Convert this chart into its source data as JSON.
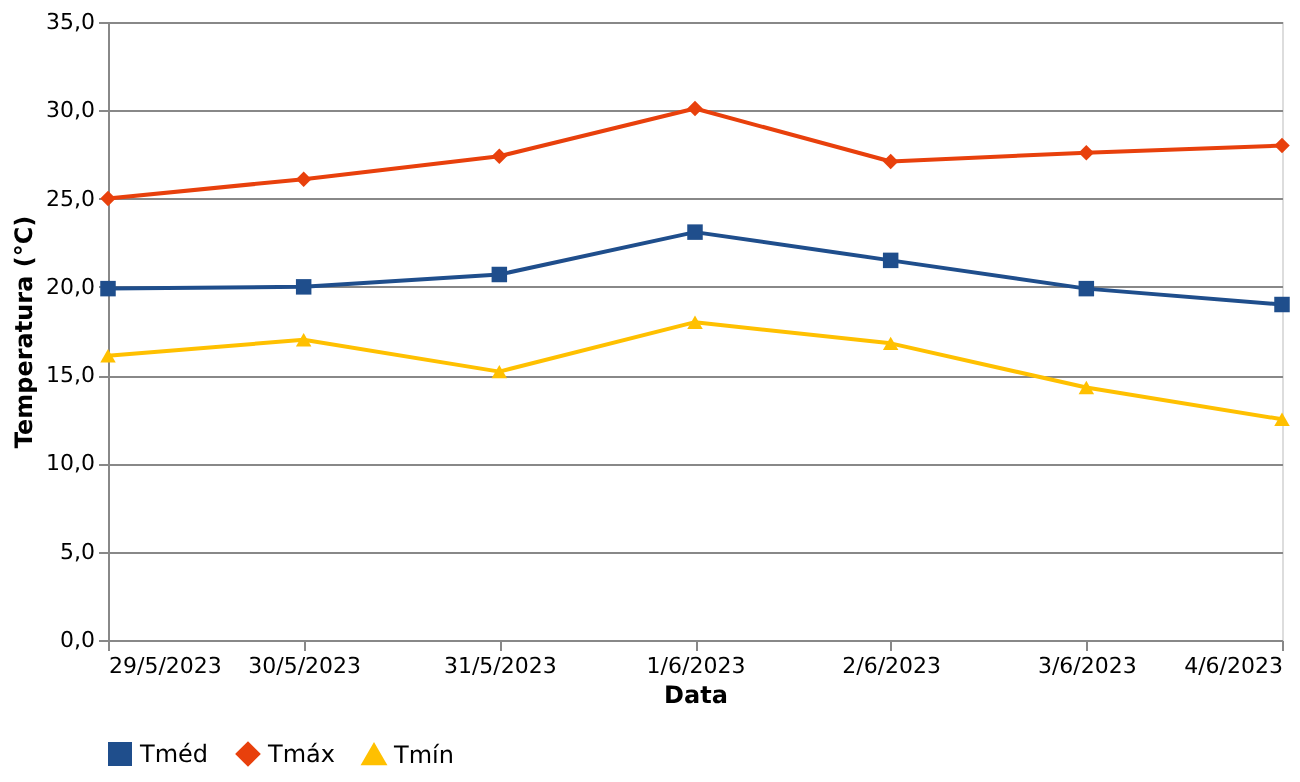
{
  "chart_data": {
    "type": "line",
    "xlabel": "Data",
    "ylabel": "Temperatura (°C)",
    "categories": [
      "29/5/2023",
      "30/5/2023",
      "31/5/2023",
      "1/6/2023",
      "2/6/2023",
      "3/6/2023",
      "4/6/2023"
    ],
    "series": [
      {
        "name": "Tméd",
        "color": "#1f4e8c",
        "marker": "square",
        "values": [
          19.9,
          20.0,
          20.7,
          23.1,
          21.5,
          19.9,
          19.0
        ]
      },
      {
        "name": "Tmáx",
        "color": "#e8400c",
        "marker": "diamond",
        "values": [
          25.0,
          26.1,
          27.4,
          30.1,
          27.1,
          27.6,
          28.0
        ]
      },
      {
        "name": "Tmín",
        "color": "#ffc000",
        "marker": "triangle",
        "values": [
          16.1,
          17.0,
          15.2,
          18.0,
          16.8,
          14.3,
          12.5
        ]
      }
    ],
    "ylim": [
      0,
      35
    ],
    "yticks": [
      {
        "value": 0,
        "label": "0,0"
      },
      {
        "value": 5,
        "label": "5,0"
      },
      {
        "value": 10,
        "label": "10,0"
      },
      {
        "value": 15,
        "label": "15,0"
      },
      {
        "value": 20,
        "label": "20,0"
      },
      {
        "value": 25,
        "label": "25,0"
      },
      {
        "value": 30,
        "label": "30,0"
      },
      {
        "value": 35,
        "label": "35,0"
      }
    ],
    "grid": "y",
    "legend": "bottom"
  }
}
